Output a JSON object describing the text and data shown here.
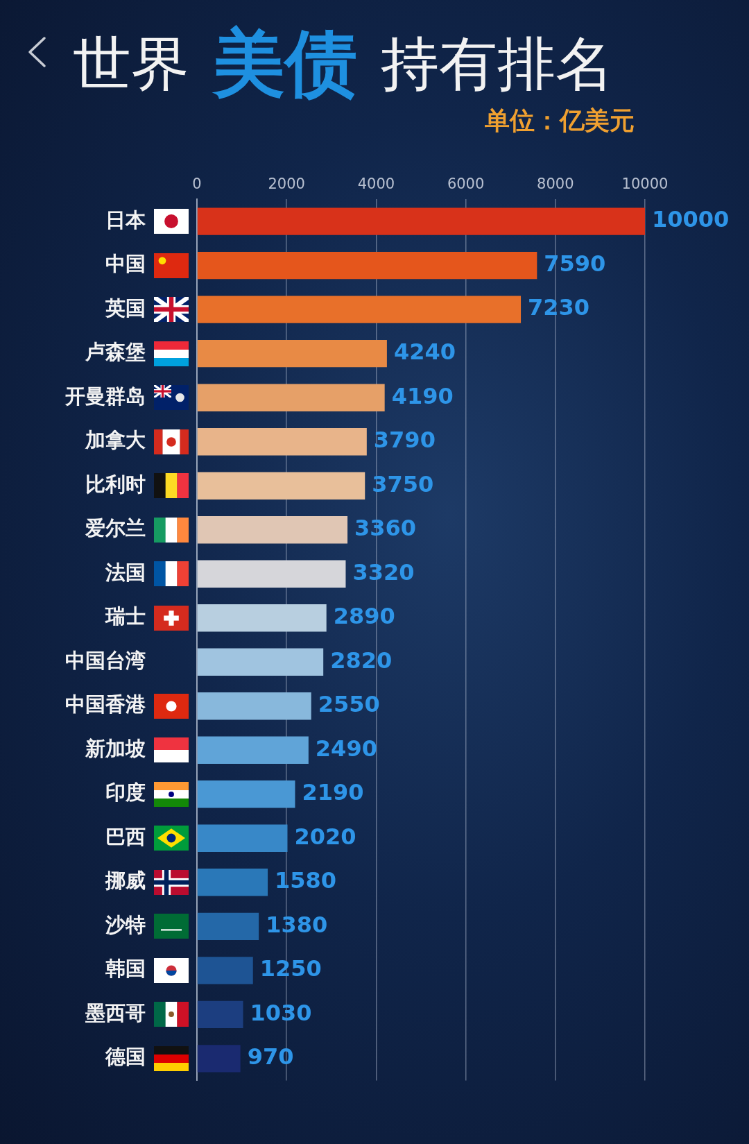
{
  "chart_data": {
    "type": "bar",
    "orientation": "horizontal",
    "title": "世界 美债 持有排名",
    "subtitle": "单位：亿美元",
    "categories": [
      "日本",
      "中国",
      "英国",
      "卢森堡",
      "开曼群岛",
      "加拿大",
      "比利时",
      "爱尔兰",
      "法国",
      "瑞士",
      "中国台湾",
      "中国香港",
      "新加坡",
      "印度",
      "巴西",
      "挪威",
      "沙特",
      "韩国",
      "墨西哥",
      "德国"
    ],
    "values": [
      10000,
      7590,
      7230,
      4240,
      4190,
      3790,
      3750,
      3360,
      3320,
      2890,
      2820,
      2550,
      2490,
      2190,
      2020,
      1580,
      1380,
      1250,
      1030,
      970
    ],
    "colors": [
      "#d8321a",
      "#e5561c",
      "#e8702a",
      "#e88a45",
      "#e6a068",
      "#e8b48a",
      "#e8bf9a",
      "#e0c6b4",
      "#d6d6da",
      "#b8cfe0",
      "#a0c4e0",
      "#88b8dc",
      "#60a4d8",
      "#4a98d4",
      "#3888c8",
      "#2a78b8",
      "#2468a8",
      "#1e5494",
      "#1c3e80",
      "#1a2a70"
    ],
    "xlim": [
      0,
      10000
    ],
    "xticks": [
      0,
      2000,
      4000,
      6000,
      8000,
      10000
    ],
    "grid": "x",
    "legend": false,
    "data_labels": true
  }
}
